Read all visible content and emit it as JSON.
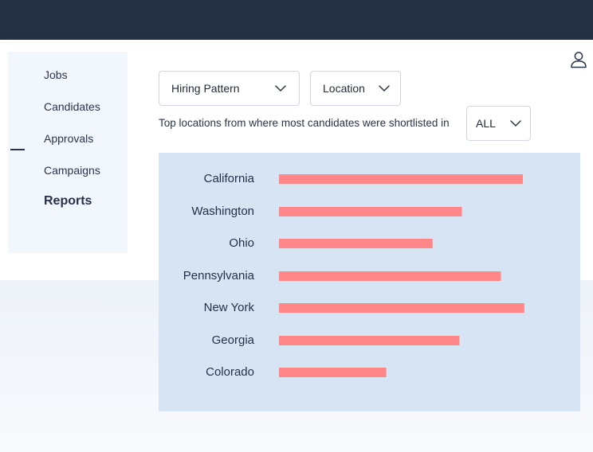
{
  "sidebar": {
    "items": [
      {
        "label": "Jobs",
        "active": false
      },
      {
        "label": "Candidates",
        "active": false
      },
      {
        "label": "Approvals",
        "active": false
      },
      {
        "label": "Campaigns",
        "active": false
      },
      {
        "label": "Reports",
        "active": true
      }
    ]
  },
  "header": {
    "user_icon": "user-icon"
  },
  "filters": {
    "hiring_pattern": {
      "selected": "Hiring Pattern",
      "icon": "chevron-down-icon"
    },
    "location": {
      "selected": "Location",
      "icon": "chevron-down-icon"
    },
    "region": {
      "selected": "ALL",
      "icon": "chevron-down-icon"
    }
  },
  "chart_description": "Top locations from where most candidates were shortlisted in",
  "colors": {
    "topbar": "#253142",
    "bar": "#ff8787",
    "chart_panel": "#d6e4f3"
  },
  "chart_data": {
    "type": "bar",
    "orientation": "horizontal",
    "categories": [
      "California",
      "Washington",
      "Ohio",
      "Pennsylvania",
      "New York",
      "Georgia",
      "Colorado"
    ],
    "values": [
      100,
      75,
      63,
      91,
      100.6,
      74,
      44
    ],
    "value_scale": "relative, no axis printed",
    "title": "",
    "xlabel": "",
    "ylabel": "",
    "grid": false,
    "legend": "none"
  }
}
